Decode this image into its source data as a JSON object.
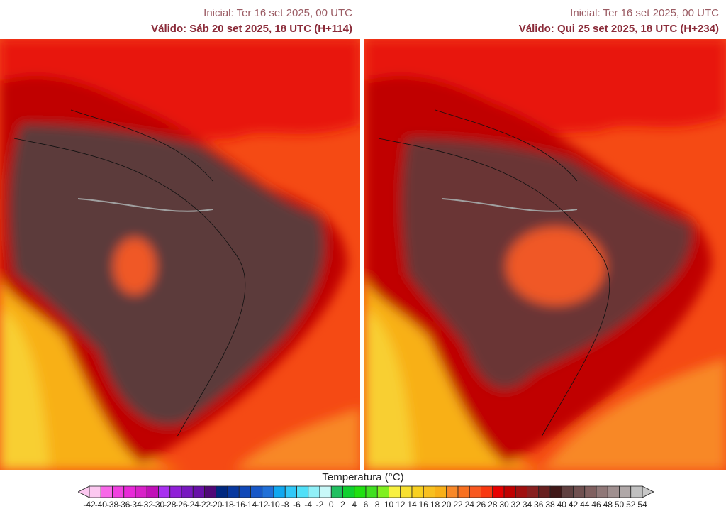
{
  "panels": [
    {
      "initial": "Inicial: Ter 16 set 2025, 00 UTC",
      "valid": "Válido: Sáb 20 set 2025, 18 UTC (H+114)"
    },
    {
      "initial": "Inicial: Ter 16 set 2025, 00 UTC",
      "valid": "Válido: Qui 25 set 2025, 18 UTC (H+234)"
    }
  ],
  "colorbar": {
    "title": "Temperatura (°C)",
    "ticks": [
      "-42",
      "-40",
      "-38",
      "-36",
      "-34",
      "-32",
      "-30",
      "-28",
      "-26",
      "-24",
      "-22",
      "-20",
      "-18",
      "-16",
      "-14",
      "-12",
      "-10",
      "-8",
      "-6",
      "-4",
      "-2",
      "0",
      "2",
      "4",
      "6",
      "8",
      "10",
      "12",
      "14",
      "16",
      "18",
      "20",
      "22",
      "24",
      "26",
      "28",
      "30",
      "32",
      "34",
      "36",
      "38",
      "40",
      "42",
      "44",
      "46",
      "48",
      "50",
      "52",
      "54"
    ],
    "colors": [
      "#fcc8f0",
      "#f868e8",
      "#f040e0",
      "#e828d8",
      "#d820c8",
      "#c010b8",
      "#a830f0",
      "#9020d8",
      "#7818c0",
      "#6810a8",
      "#500878",
      "#002880",
      "#0838a0",
      "#1048b8",
      "#1858c8",
      "#2070d8",
      "#10a8f0",
      "#30c8f8",
      "#50e0f8",
      "#90f0f8",
      "#c8f8f8",
      "#20c060",
      "#10d030",
      "#20e010",
      "#40e020",
      "#80f020",
      "#f8f040",
      "#f8e030",
      "#f8d020",
      "#f8c020",
      "#f8b018",
      "#f88828",
      "#f87020",
      "#f85820",
      "#f83810",
      "#e80000",
      "#c00000",
      "#a01010",
      "#882020",
      "#682020",
      "#401818",
      "#604040",
      "#705050",
      "#806060",
      "#907878",
      "#a09090",
      "#b0a8a8",
      "#c0c0c0"
    ],
    "under_color": "#fcc8f0",
    "over_color": "#c8c8c8"
  }
}
